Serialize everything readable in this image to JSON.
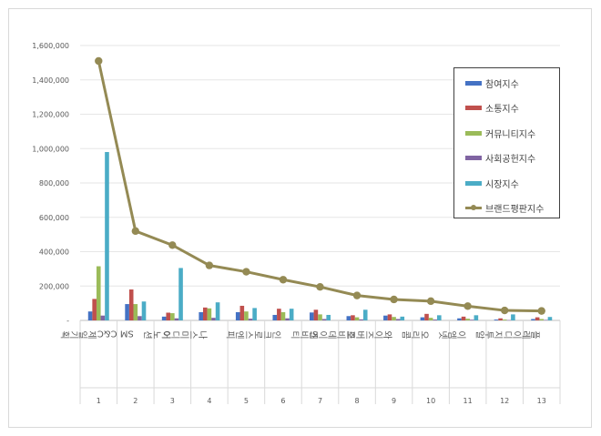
{
  "chart_data": {
    "type": "bar",
    "combo_line_series": "브랜드평판지수",
    "categories": [
      "제일기획",
      "SM C&C",
      "이노션",
      "나스미디어",
      "엔피",
      "인크로스",
      "엔비티",
      "모비데이즈",
      "와이즈버즈",
      "오리콤",
      "이엠넷",
      "지투알",
      "플레이디"
    ],
    "category_index": [
      "1",
      "2",
      "3",
      "4",
      "5",
      "6",
      "7",
      "8",
      "9",
      "10",
      "11",
      "12",
      "13"
    ],
    "yticks": [
      "-",
      "200,000",
      "400,000",
      "600,000",
      "800,000",
      "1,000,000",
      "1,200,000",
      "1,400,000",
      "1,600,000"
    ],
    "ylim": [
      0,
      1600000
    ],
    "legend_position": "top-right",
    "grid": true,
    "series": [
      {
        "name": "참여지수",
        "type": "bar",
        "color": "#4472c4",
        "values": [
          52000,
          95000,
          22000,
          48000,
          48000,
          32000,
          46000,
          25000,
          28000,
          18000,
          12000,
          5000,
          8000
        ]
      },
      {
        "name": "소통지수",
        "type": "bar",
        "color": "#c0504d",
        "values": [
          125000,
          180000,
          45000,
          75000,
          85000,
          68000,
          62000,
          30000,
          35000,
          38000,
          22000,
          12000,
          18000
        ]
      },
      {
        "name": "커뮤니티지수",
        "type": "bar",
        "color": "#9bbb59",
        "values": [
          315000,
          95000,
          42000,
          70000,
          52000,
          48000,
          35000,
          18000,
          20000,
          15000,
          10000,
          5000,
          8000
        ]
      },
      {
        "name": "사회공헌지수",
        "type": "bar",
        "color": "#8064a2",
        "values": [
          28000,
          25000,
          12000,
          15000,
          10000,
          12000,
          8000,
          6000,
          8000,
          5000,
          4000,
          2000,
          3000
        ]
      },
      {
        "name": "시장지수",
        "type": "bar",
        "color": "#4bacc6",
        "values": [
          980000,
          110000,
          305000,
          105000,
          72000,
          68000,
          32000,
          62000,
          22000,
          30000,
          30000,
          35000,
          20000
        ]
      },
      {
        "name": "브랜드평판지수",
        "type": "line",
        "color": "#948a54",
        "values": [
          1510000,
          520000,
          438000,
          320000,
          283000,
          237000,
          195000,
          145000,
          122000,
          112000,
          83000,
          58000,
          55000
        ]
      }
    ]
  }
}
